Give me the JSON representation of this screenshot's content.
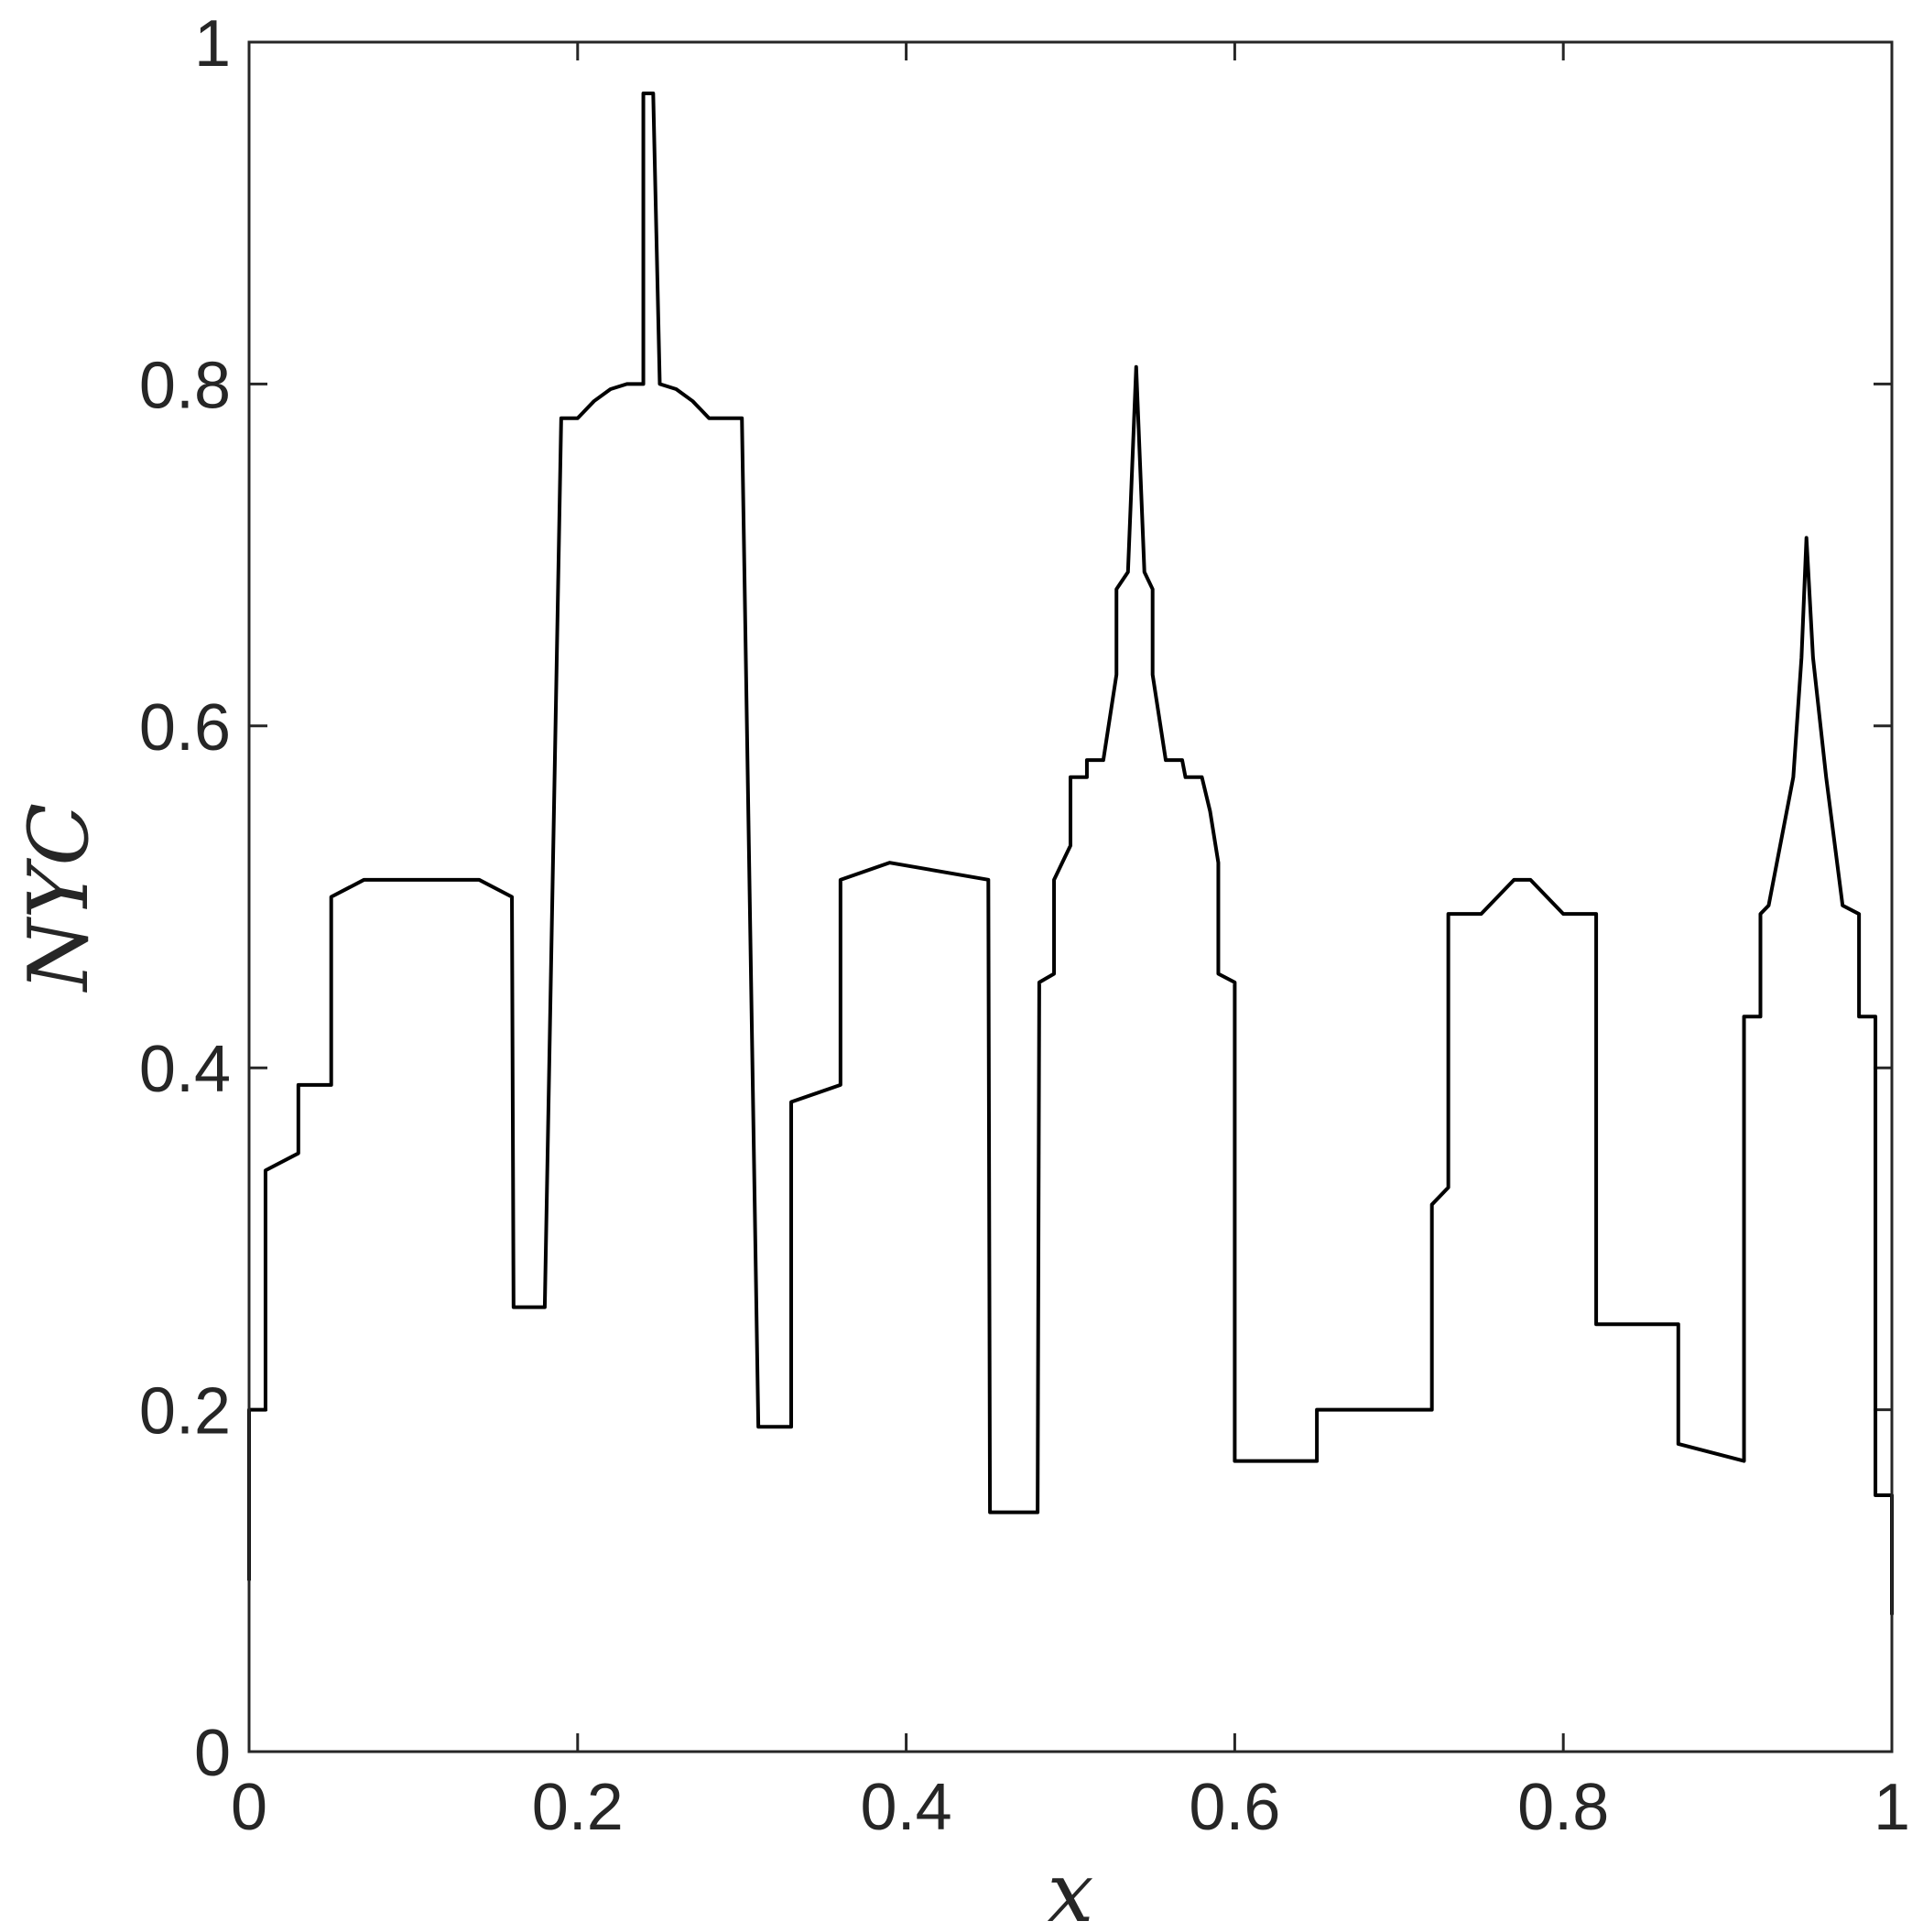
{
  "chart_data": {
    "type": "line",
    "title": "",
    "xlabel": "x",
    "ylabel": "NYC",
    "xlim": [
      0,
      1
    ],
    "ylim": [
      0,
      1
    ],
    "xticks": [
      0,
      0.2,
      0.4,
      0.6,
      0.8,
      1
    ],
    "yticks": [
      0,
      0.2,
      0.4,
      0.6,
      0.8,
      1
    ],
    "xtick_labels": [
      "0",
      "0.2",
      "0.4",
      "0.6",
      "0.8",
      "1"
    ],
    "ytick_labels": [
      "0",
      "0.2",
      "0.4",
      "0.6",
      "0.8",
      "1"
    ],
    "grid": false,
    "box": true,
    "line_color": "#000000",
    "axis_color": "#262626",
    "series": [
      {
        "x": [
          0,
          0,
          0.01,
          0.01,
          0.03,
          0.03,
          0.05,
          0.05,
          0.07,
          0.14,
          0.16,
          0.161,
          0.18,
          0.19,
          0.2,
          0.21,
          0.22,
          0.23,
          0.24,
          0.24,
          0.246,
          0.25,
          0.26,
          0.27,
          0.28,
          0.29,
          0.3,
          0.31,
          0.33,
          0.33,
          0.36,
          0.36,
          0.39,
          0.45,
          0.451,
          0.48,
          0.481,
          0.49,
          0.49,
          0.495,
          0.5,
          0.5,
          0.51,
          0.51,
          0.52,
          0.528,
          0.528,
          0.535,
          0.54,
          0.545,
          0.55,
          0.55,
          0.558,
          0.568,
          0.57,
          0.58,
          0.585,
          0.59,
          0.59,
          0.6,
          0.6,
          0.65,
          0.65,
          0.72,
          0.72,
          0.73,
          0.73,
          0.75,
          0.76,
          0.77,
          0.78,
          0.79,
          0.8,
          0.82,
          0.82,
          0.87,
          0.87,
          0.91,
          0.91,
          0.92,
          0.92,
          0.925,
          0.94,
          0.945,
          0.948,
          0.952,
          0.96,
          0.97,
          0.98,
          0.98,
          0.99,
          0.99,
          1.0,
          1.0
        ],
        "y": [
          0.1,
          0.2,
          0.2,
          0.34,
          0.35,
          0.39,
          0.39,
          0.5,
          0.51,
          0.51,
          0.5,
          0.26,
          0.26,
          0.78,
          0.78,
          0.79,
          0.797,
          0.8,
          0.8,
          0.97,
          0.97,
          0.8,
          0.797,
          0.79,
          0.78,
          0.78,
          0.78,
          0.19,
          0.19,
          0.38,
          0.39,
          0.51,
          0.52,
          0.51,
          0.14,
          0.14,
          0.45,
          0.455,
          0.51,
          0.52,
          0.53,
          0.57,
          0.57,
          0.58,
          0.58,
          0.63,
          0.68,
          0.69,
          0.81,
          0.69,
          0.68,
          0.63,
          0.58,
          0.58,
          0.57,
          0.57,
          0.55,
          0.52,
          0.455,
          0.45,
          0.17,
          0.17,
          0.2,
          0.2,
          0.32,
          0.33,
          0.49,
          0.49,
          0.5,
          0.51,
          0.51,
          0.5,
          0.49,
          0.49,
          0.25,
          0.25,
          0.18,
          0.17,
          0.43,
          0.43,
          0.49,
          0.495,
          0.57,
          0.64,
          0.71,
          0.64,
          0.57,
          0.495,
          0.49,
          0.43,
          0.43,
          0.15,
          0.15,
          0.08
        ]
      }
    ]
  }
}
